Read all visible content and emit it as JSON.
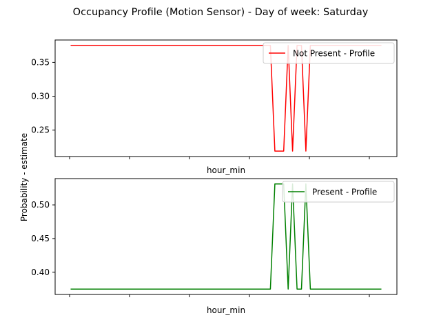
{
  "figure": {
    "title": "Occupancy Profile (Motion Sensor) - Day of week: Saturday",
    "ylabel": "Probability - estimate"
  },
  "chart_data": [
    {
      "type": "line",
      "xlabel": "hour_min",
      "x_tick_count": 6,
      "ylim": [
        0.211,
        0.383
      ],
      "yticks": [
        0.25,
        0.3,
        0.35
      ],
      "ytick_labels": [
        "0.25",
        "0.30",
        "0.35"
      ],
      "legend_position": "upper right",
      "series": [
        {
          "name": "Not Present - Profile",
          "color": "#ff0000",
          "x": [
            0,
            45,
            46,
            48,
            49,
            50,
            51,
            52,
            53,
            54,
            55,
            70
          ],
          "y": [
            0.375,
            0.375,
            0.219,
            0.219,
            0.375,
            0.219,
            0.375,
            0.375,
            0.219,
            0.375,
            0.375,
            0.375
          ]
        }
      ]
    },
    {
      "type": "line",
      "xlabel": "hour_min",
      "x_tick_count": 6,
      "ylim": [
        0.367,
        0.539
      ],
      "yticks": [
        0.4,
        0.45,
        0.5
      ],
      "ytick_labels": [
        "0.40",
        "0.45",
        "0.50"
      ],
      "legend_position": "upper right",
      "series": [
        {
          "name": "Present - Profile",
          "color": "#008000",
          "x": [
            0,
            45,
            46,
            48,
            49,
            50,
            51,
            52,
            53,
            54,
            55,
            70
          ],
          "y": [
            0.375,
            0.375,
            0.531,
            0.531,
            0.375,
            0.531,
            0.375,
            0.375,
            0.531,
            0.375,
            0.375,
            0.375
          ]
        }
      ]
    }
  ]
}
